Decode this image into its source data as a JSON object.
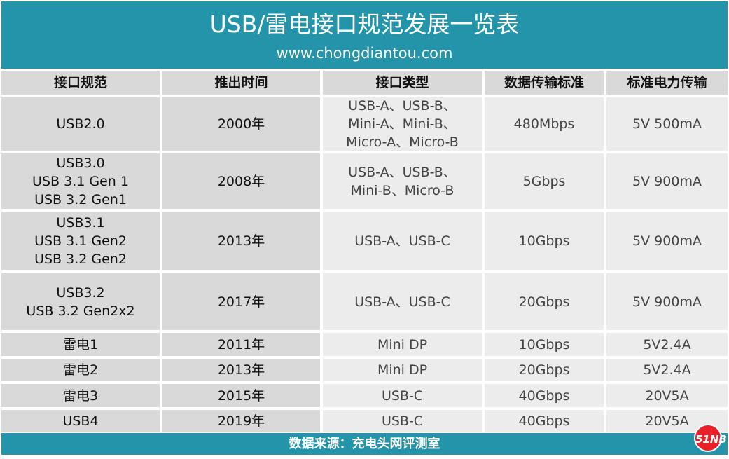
{
  "header": {
    "title": "USB/雷电接口规范发展一览表",
    "site": "www.chongdiantou.com"
  },
  "table": {
    "columns": [
      "接口规范",
      "推出时间",
      "接口类型",
      "数据传输标准",
      "标准电力传输"
    ],
    "rows": [
      [
        "USB2.0",
        "2000年",
        "USB-A、USB-B、\nMini-A、Mini-B、\nMicro-A、Micro-B",
        "480Mbps",
        "5V 500mA"
      ],
      [
        "USB3.0\nUSB 3.1 Gen 1\nUSB 3.2 Gen1",
        "2008年",
        "USB-A、USB-B、\nMini-B、Micro-B",
        "5Gbps",
        "5V 900mA"
      ],
      [
        "USB3.1\nUSB 3.1 Gen2\nUSB 3.2 Gen2",
        "2013年",
        "USB-A、USB-C",
        "10Gbps",
        "5V 900mA"
      ],
      [
        "USB3.2\nUSB 3.2 Gen2x2",
        "2017年",
        "USB-A、USB-C",
        "20Gbps",
        "5V 900mA"
      ],
      [
        "雷电1",
        "2011年",
        "Mini DP",
        "10Gbps",
        "5V2.4A"
      ],
      [
        "雷电2",
        "2013年",
        "Mini DP",
        "20Gbps",
        "5V2.4A"
      ],
      [
        "雷电3",
        "2015年",
        "USB-C",
        "40Gbps",
        "20V5A"
      ],
      [
        "USB4",
        "2019年",
        "USB-C",
        "40Gbps",
        "20V5A"
      ]
    ]
  },
  "footer": {
    "source": "数据来源：充电头网评测室",
    "logo": "51NB"
  },
  "colors": {
    "brand": "#2494aa",
    "logo": "#e8202a"
  }
}
